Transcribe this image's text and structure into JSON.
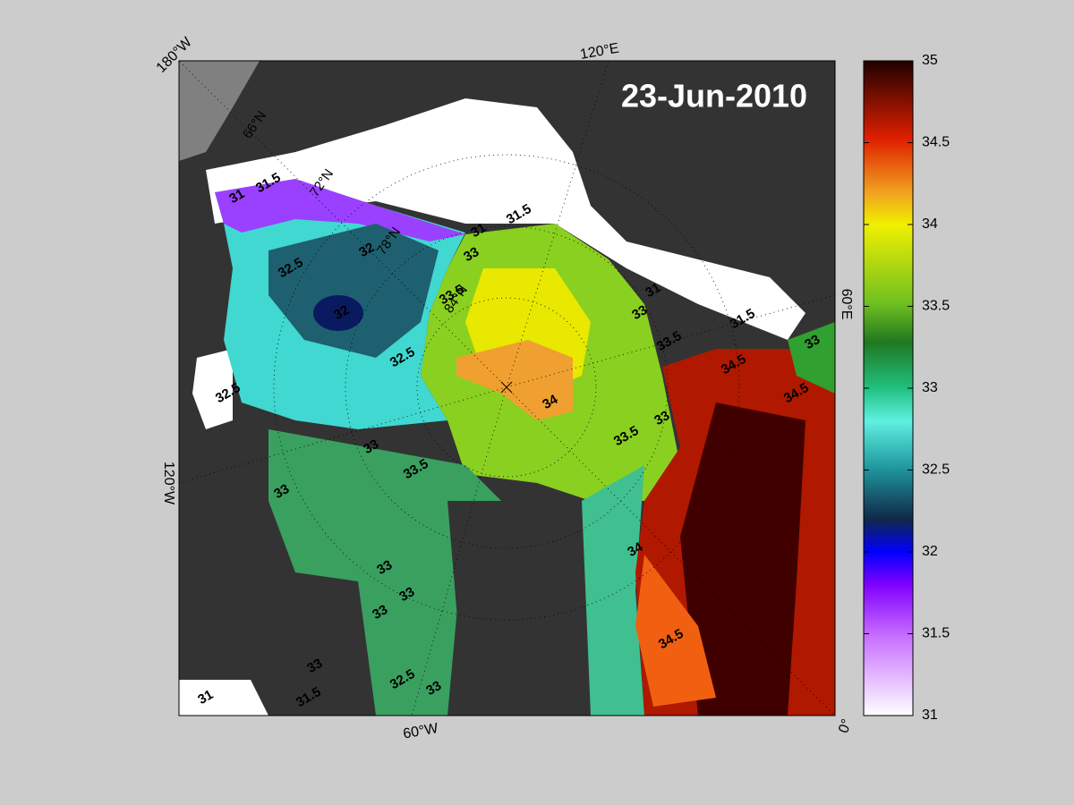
{
  "map": {
    "date": "23-Jun-2010",
    "longitude_labels": [
      "180°W",
      "120°E",
      "60°E",
      "0°",
      "60°W",
      "120°W"
    ],
    "latitude_labels": [
      "66°N",
      "72°N",
      "78°N",
      "84°N"
    ],
    "contour_labels": [
      "32",
      "32",
      "32.5",
      "33",
      "33.5",
      "34",
      "33.5",
      "31",
      "31.5",
      "33",
      "33",
      "34.5",
      "34.5",
      "33.5",
      "33",
      "34",
      "34.5",
      "33",
      "33",
      "33",
      "32.5",
      "33",
      "33",
      "31.5",
      "31",
      "32.5",
      "31.5",
      "31",
      "33",
      "31",
      "31.5",
      "32.5",
      "33",
      "33.5"
    ],
    "colorbar": {
      "range": [
        31,
        35
      ],
      "ticks": [
        31,
        31.5,
        32,
        32.5,
        33,
        33.5,
        34,
        34.5,
        35
      ]
    }
  }
}
